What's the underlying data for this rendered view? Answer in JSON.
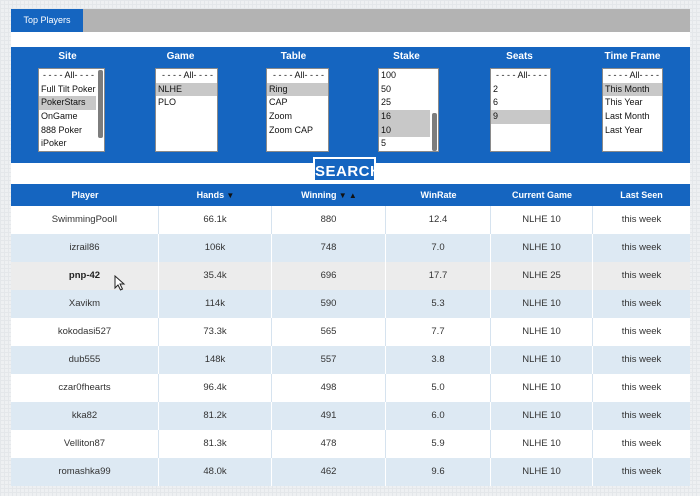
{
  "tab": {
    "label": "Top Players"
  },
  "filters": [
    {
      "label": "Site",
      "options": [
        "- - - - All- - - -",
        "Full Tilt Poker",
        "PokerStars",
        "OnGame",
        "888 Poker",
        "iPoker"
      ],
      "selected": [
        2
      ]
    },
    {
      "label": "Game",
      "options": [
        "- - - - All- - - -",
        "NLHE",
        "PLO"
      ],
      "selected": [
        1
      ]
    },
    {
      "label": "Table",
      "options": [
        "- - - - All- - - -",
        "Ring",
        "CAP",
        "Zoom",
        "Zoom CAP"
      ],
      "selected": [
        1
      ]
    },
    {
      "label": "Stake",
      "options": [
        "100",
        "50",
        "25",
        "16",
        "10",
        "5"
      ],
      "selected": [
        3,
        4
      ]
    },
    {
      "label": "Seats",
      "options": [
        "- - - - All- - - -",
        "2",
        "6",
        "9"
      ],
      "selected": [
        3
      ]
    },
    {
      "label": "Time Frame",
      "options": [
        "- - - - All- - - -",
        "This Month",
        "This Year",
        "Last Month",
        "Last Year"
      ],
      "selected": [
        1
      ]
    }
  ],
  "search_label": "SEARCH",
  "columns": [
    "Player",
    "Hands",
    "Winning",
    "WinRate",
    "Current Game",
    "Last Seen"
  ],
  "rows": [
    [
      "SwimmingPoolI",
      "66.1k",
      "880",
      "12.4",
      "NLHE 10",
      "this week"
    ],
    [
      "izrail86",
      "106k",
      "748",
      "7.0",
      "NLHE 10",
      "this week"
    ],
    [
      "pnp-42",
      "35.4k",
      "696",
      "17.7",
      "NLHE 25",
      "this week"
    ],
    [
      "Xavikm",
      "114k",
      "590",
      "5.3",
      "NLHE 10",
      "this week"
    ],
    [
      "kokodasi527",
      "73.3k",
      "565",
      "7.7",
      "NLHE 10",
      "this week"
    ],
    [
      "dub555",
      "148k",
      "557",
      "3.8",
      "NLHE 10",
      "this week"
    ],
    [
      "czar0fhearts",
      "96.4k",
      "498",
      "5.0",
      "NLHE 10",
      "this week"
    ],
    [
      "kka82",
      "81.2k",
      "491",
      "6.0",
      "NLHE 10",
      "this week"
    ],
    [
      "Velliton87",
      "81.3k",
      "478",
      "5.9",
      "NLHE 10",
      "this week"
    ],
    [
      "romashka99",
      "48.0k",
      "462",
      "9.6",
      "NLHE 10",
      "this week"
    ]
  ],
  "hover_row": 2,
  "colors": {
    "accent": "#1565c0",
    "row_alt": "#dde9f3",
    "tabbar": "#b3b3b3"
  }
}
